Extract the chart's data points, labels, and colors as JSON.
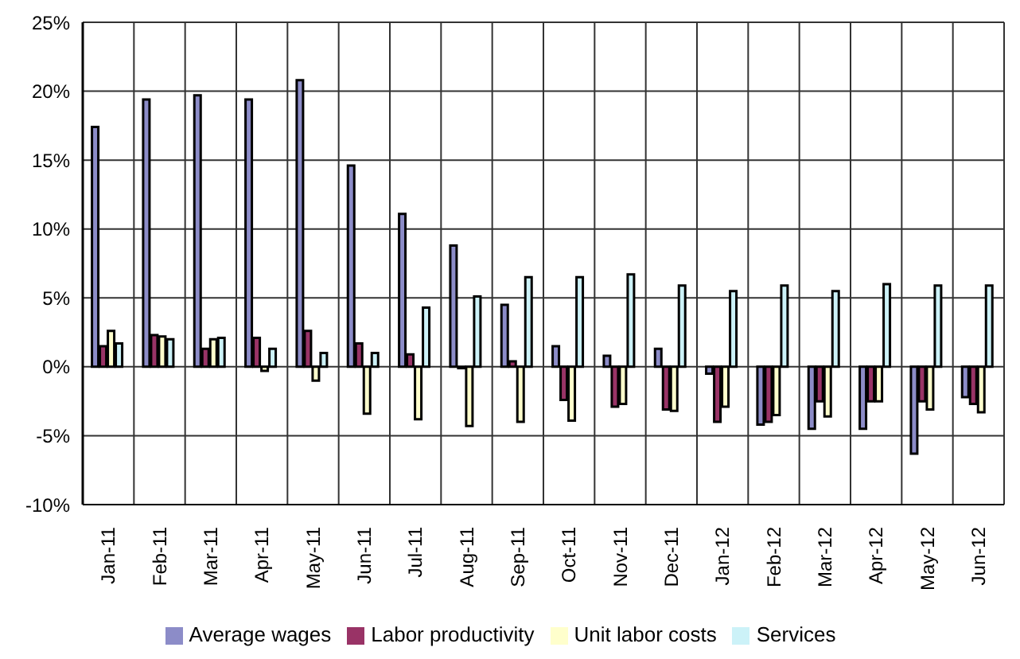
{
  "chart_data": {
    "type": "bar",
    "categories": [
      "Jan-11",
      "Feb-11",
      "Mar-11",
      "Apr-11",
      "May-11",
      "Jun-11",
      "Jul-11",
      "Aug-11",
      "Sep-11",
      "Oct-11",
      "Nov-11",
      "Dec-11",
      "Jan-12",
      "Feb-12",
      "Mar-12",
      "Apr-12",
      "May-12",
      "Jun-12"
    ],
    "series": [
      {
        "name": "Average wages",
        "color": "#8c8cc8",
        "values": [
          17.4,
          19.4,
          19.7,
          19.4,
          20.8,
          14.6,
          11.1,
          8.8,
          4.5,
          1.5,
          0.8,
          1.3,
          -0.5,
          -4.2,
          -4.5,
          -4.5,
          -6.3,
          -2.2
        ]
      },
      {
        "name": "Labor productivity",
        "color": "#993366",
        "values": [
          1.5,
          2.3,
          1.3,
          2.1,
          2.6,
          1.7,
          0.9,
          -0.1,
          0.4,
          -2.4,
          -2.9,
          -3.1,
          -4.0,
          -4.0,
          -2.5,
          -2.5,
          -2.5,
          -2.7
        ]
      },
      {
        "name": "Unit labor costs",
        "color": "#ffffcc",
        "values": [
          2.6,
          2.2,
          2.0,
          -0.3,
          -1.0,
          -3.4,
          -3.8,
          -4.3,
          -4.0,
          -3.9,
          -2.7,
          -3.2,
          -2.9,
          -3.5,
          -3.6,
          -2.5,
          -3.1,
          -3.3
        ]
      },
      {
        "name": "Services",
        "color": "#ccf2f8",
        "values": [
          1.7,
          2.0,
          2.1,
          1.3,
          1.0,
          1.0,
          4.3,
          5.1,
          6.5,
          6.5,
          6.7,
          5.9,
          5.5,
          5.9,
          5.5,
          6.0,
          5.9,
          5.9
        ]
      }
    ],
    "ylim": [
      -10,
      25
    ],
    "yticks": [
      {
        "value": -10,
        "label": "-10%"
      },
      {
        "value": -5,
        "label": "-5%"
      },
      {
        "value": 0,
        "label": "0%"
      },
      {
        "value": 5,
        "label": "5%"
      },
      {
        "value": 10,
        "label": "10%"
      },
      {
        "value": 15,
        "label": "15%"
      },
      {
        "value": 20,
        "label": "20%"
      },
      {
        "value": 25,
        "label": "25%"
      }
    ],
    "grid": true,
    "legend": "bottom"
  }
}
